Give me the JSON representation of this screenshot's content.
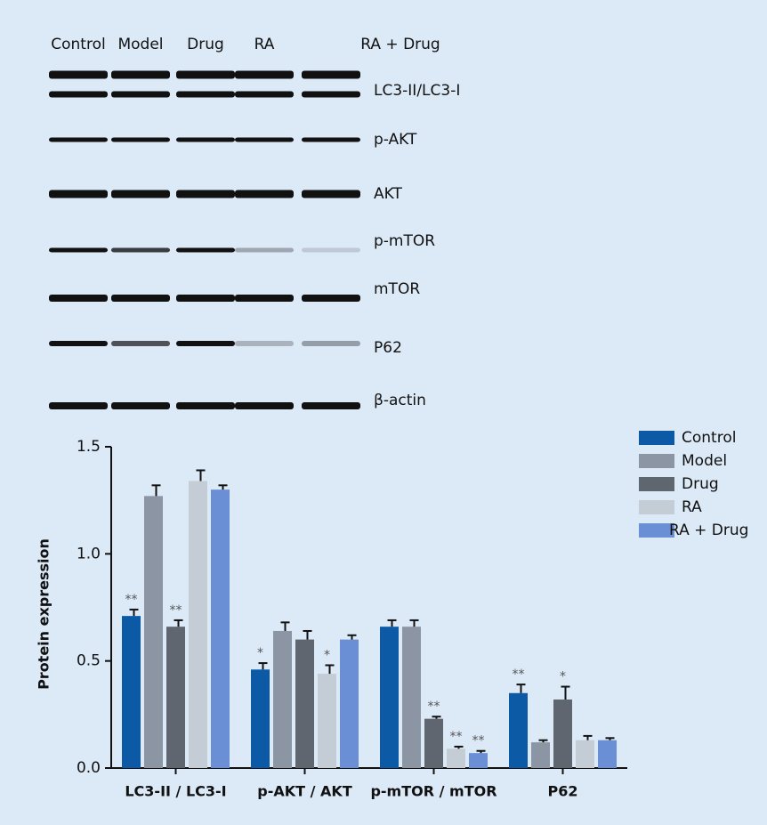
{
  "blot": {
    "lanes": [
      "Control",
      "Model",
      "Drug",
      "RA",
      "RA + Drug"
    ],
    "bands": [
      "LC3-II/LC3-I",
      "p-AKT",
      "AKT",
      "p-mTOR",
      "mTOR",
      "P62",
      "β-actin"
    ]
  },
  "chart_data": {
    "type": "bar",
    "ylabel": "Protein expression",
    "categories": [
      "LC3-II / LC3-I",
      "p-AKT / AKT",
      "p-mTOR / mTOR",
      "P62"
    ],
    "series": [
      {
        "name": "Control",
        "color": "#0c5aa6",
        "values": [
          0.71,
          0.46,
          0.66,
          0.35
        ],
        "errors": [
          0.03,
          0.03,
          0.03,
          0.04
        ],
        "annotations": [
          "**",
          "*",
          null,
          "**"
        ]
      },
      {
        "name": "Model",
        "color": "#8b95a3",
        "values": [
          1.27,
          0.64,
          0.66,
          0.12
        ],
        "errors": [
          0.05,
          0.04,
          0.03,
          0.01
        ],
        "annotations": [
          null,
          null,
          null,
          null
        ]
      },
      {
        "name": "Drug",
        "color": "#5f6670",
        "values": [
          0.66,
          0.6,
          0.23,
          0.32
        ],
        "errors": [
          0.03,
          0.04,
          0.01,
          0.06
        ],
        "annotations": [
          "**",
          null,
          "**",
          "*"
        ]
      },
      {
        "name": "RA",
        "color": "#c4ccd5",
        "values": [
          1.34,
          0.44,
          0.09,
          0.13
        ],
        "errors": [
          0.05,
          0.04,
          0.01,
          0.02
        ],
        "annotations": [
          null,
          "*",
          "**",
          null
        ]
      },
      {
        "name": "RA + Drug",
        "color": "#6b8fd4",
        "values": [
          1.3,
          0.6,
          0.07,
          0.13
        ],
        "errors": [
          0.02,
          0.02,
          0.01,
          0.01
        ],
        "annotations": [
          null,
          null,
          "**",
          null
        ]
      }
    ],
    "ylim": [
      0,
      1.5
    ],
    "yticks": [
      {
        "value": 0,
        "label": "0.0"
      },
      {
        "value": 0.5,
        "label": "0.5"
      },
      {
        "value": 1,
        "label": "1.0"
      },
      {
        "value": 1.5,
        "label": "1.5"
      }
    ],
    "legend": "upper right"
  }
}
